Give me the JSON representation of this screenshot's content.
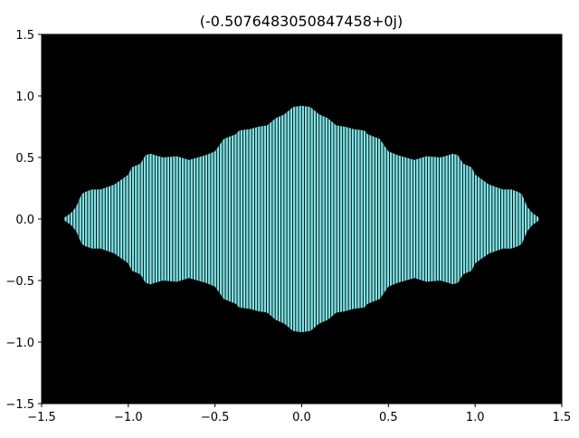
{
  "chart_data": {
    "type": "area",
    "title": "(-0.5076483050847458+0j)",
    "xlabel": "",
    "ylabel": "",
    "xlim": [
      -1.5,
      1.5
    ],
    "ylim": [
      -1.5,
      1.5
    ],
    "x_ticks": [
      "−1.5",
      "−1.0",
      "−0.5",
      "0.0",
      "0.5",
      "1.0",
      "1.5"
    ],
    "y_ticks": [
      "−1.5",
      "−1.0",
      "−0.5",
      "0.0",
      "0.5",
      "1.0",
      "1.5"
    ],
    "x_tick_values": [
      -1.5,
      -1.0,
      -0.5,
      0.0,
      0.5,
      1.0,
      1.5
    ],
    "y_tick_values": [
      -1.5,
      -1.0,
      -0.5,
      0.0,
      0.5,
      1.0,
      1.5
    ],
    "background_color": "#000000",
    "fill_color": "#7fe5e8",
    "column_edge_color": "#000000",
    "column_step": 0.0169,
    "grid": false,
    "legend": "none",
    "symmetry": "mirrored about y = 0",
    "upper_boundary": {
      "x": [
        -1.37,
        -1.33,
        -1.3,
        -1.27,
        -1.25,
        -1.21,
        -1.16,
        -1.08,
        -1.0,
        -0.98,
        -0.93,
        -0.9,
        -0.87,
        -0.85,
        -0.8,
        -0.72,
        -0.65,
        -0.55,
        -0.5,
        -0.45,
        -0.38,
        -0.36,
        -0.3,
        -0.25,
        -0.2,
        -0.15,
        -0.1,
        -0.05,
        0.0,
        0.05,
        0.1,
        0.15,
        0.2,
        0.25,
        0.3,
        0.36,
        0.38,
        0.45,
        0.5,
        0.55,
        0.65,
        0.72,
        0.8,
        0.85,
        0.87,
        0.9,
        0.93,
        0.98,
        1.0,
        1.08,
        1.16,
        1.21,
        1.25,
        1.27,
        1.3,
        1.33,
        1.37
      ],
      "y": [
        0.01,
        0.05,
        0.1,
        0.2,
        0.22,
        0.24,
        0.24,
        0.28,
        0.36,
        0.42,
        0.45,
        0.52,
        0.53,
        0.52,
        0.5,
        0.51,
        0.48,
        0.52,
        0.55,
        0.65,
        0.69,
        0.72,
        0.73,
        0.75,
        0.76,
        0.82,
        0.85,
        0.91,
        0.92,
        0.91,
        0.85,
        0.82,
        0.76,
        0.75,
        0.73,
        0.72,
        0.69,
        0.65,
        0.55,
        0.52,
        0.48,
        0.51,
        0.5,
        0.52,
        0.53,
        0.52,
        0.45,
        0.42,
        0.36,
        0.28,
        0.24,
        0.24,
        0.22,
        0.2,
        0.1,
        0.05,
        0.01
      ]
    }
  }
}
